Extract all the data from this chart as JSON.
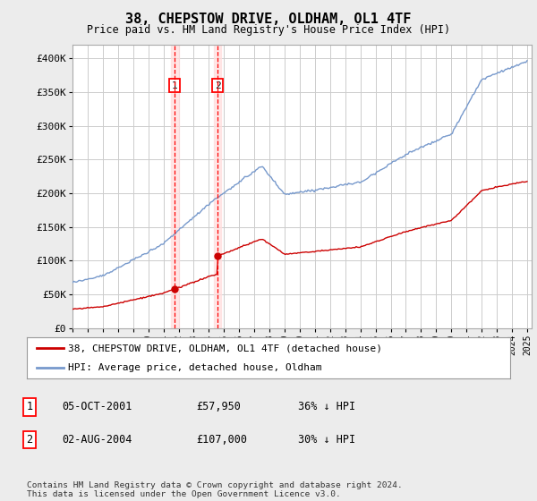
{
  "title": "38, CHEPSTOW DRIVE, OLDHAM, OL1 4TF",
  "subtitle": "Price paid vs. HM Land Registry's House Price Index (HPI)",
  "ylim": [
    0,
    420000
  ],
  "yticks": [
    0,
    50000,
    100000,
    150000,
    200000,
    250000,
    300000,
    350000,
    400000
  ],
  "ytick_labels": [
    "£0",
    "£50K",
    "£100K",
    "£150K",
    "£200K",
    "£250K",
    "£300K",
    "£350K",
    "£400K"
  ],
  "background_color": "#ececec",
  "plot_background": "#ffffff",
  "grid_color": "#cccccc",
  "hpi_color": "#7799cc",
  "price_color": "#cc0000",
  "sale1_time": 2001.75,
  "sale1_price": 57950,
  "sale2_time": 2004.583,
  "sale2_price": 107000,
  "legend_line1": "38, CHEPSTOW DRIVE, OLDHAM, OL1 4TF (detached house)",
  "legend_line2": "HPI: Average price, detached house, Oldham",
  "table_row1": [
    "1",
    "05-OCT-2001",
    "£57,950",
    "36% ↓ HPI"
  ],
  "table_row2": [
    "2",
    "02-AUG-2004",
    "£107,000",
    "30% ↓ HPI"
  ],
  "footer": "Contains HM Land Registry data © Crown copyright and database right 2024.\nThis data is licensed under the Open Government Licence v3.0."
}
